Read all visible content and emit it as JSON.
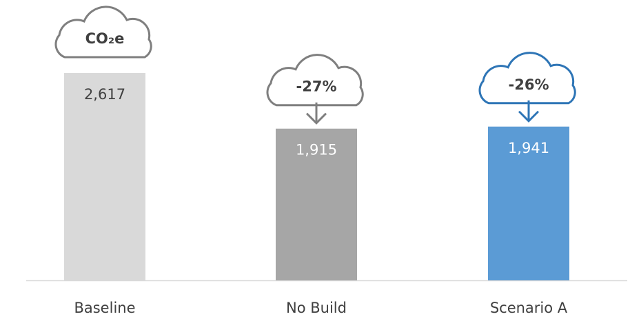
{
  "chart_data": {
    "type": "bar",
    "categories": [
      "Baseline",
      "No Build",
      "Scenario A"
    ],
    "values": [
      2617,
      1915,
      1941
    ],
    "value_labels": [
      "2,617",
      "1,915",
      "1,941"
    ],
    "colors": [
      "#d9d9d9",
      "#a6a6a6",
      "#5b9bd5"
    ],
    "annotations": [
      "CO₂e",
      "-27%",
      "-26%"
    ],
    "annotation_colors": [
      "#7f7f7f",
      "#7f7f7f",
      "#2e75b6"
    ]
  }
}
